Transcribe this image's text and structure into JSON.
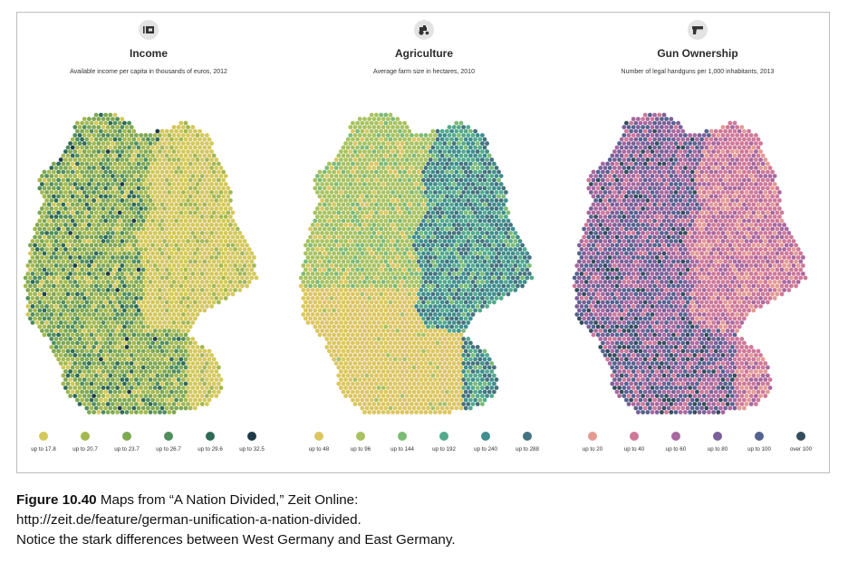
{
  "panels": [
    {
      "id": "income",
      "icon": "wallet-icon",
      "title": "Income",
      "subtitle": "Available income per capita in thousands of euros, 2012",
      "legend": [
        {
          "label": "up to 17.8",
          "color": "#d4c85a"
        },
        {
          "label": "up to 20.7",
          "color": "#a3b84f"
        },
        {
          "label": "up to 23.7",
          "color": "#7ea852"
        },
        {
          "label": "up to 26.7",
          "color": "#4f8e5c"
        },
        {
          "label": "up to 29.6",
          "color": "#2f6a57"
        },
        {
          "label": "up to 32.5",
          "color": "#1f3b47"
        }
      ]
    },
    {
      "id": "agriculture",
      "icon": "tractor-icon",
      "title": "Agriculture",
      "subtitle": "Average farm size in hectares, 2010",
      "legend": [
        {
          "label": "up to 48",
          "color": "#dcc660"
        },
        {
          "label": "up to 96",
          "color": "#a8c260"
        },
        {
          "label": "up to 144",
          "color": "#7cbb75"
        },
        {
          "label": "up to 192",
          "color": "#52aa8c"
        },
        {
          "label": "up to 240",
          "color": "#3f8e8e"
        },
        {
          "label": "up to 288",
          "color": "#44727d"
        }
      ]
    },
    {
      "id": "guns",
      "icon": "handgun-icon",
      "title": "Gun Ownership",
      "subtitle": "Number of legal handguns per 1,000 inhabitants, 2013",
      "legend": [
        {
          "label": "up to 20",
          "color": "#e49a93"
        },
        {
          "label": "up to 40",
          "color": "#cf7899"
        },
        {
          "label": "up to 60",
          "color": "#a8689f"
        },
        {
          "label": "up to 80",
          "color": "#7b5f99"
        },
        {
          "label": "up to 100",
          "color": "#55628f"
        },
        {
          "label": "over 100",
          "color": "#344d5c"
        }
      ]
    }
  ],
  "caption": {
    "figure_number": "Figure 10.40",
    "line1": "Maps from “A Nation Divided,” Zeit Online:",
    "line2": "http://zeit.de/feature/german-unification-a-nation-divided.",
    "line3": "Notice the stark differences between West Germany and East Germany."
  }
}
